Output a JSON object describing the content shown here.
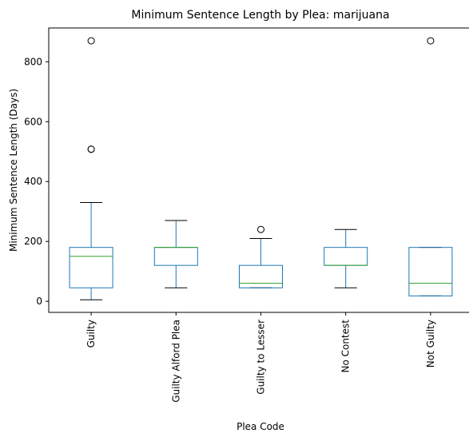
{
  "chart_data": {
    "type": "box",
    "title": "Minimum Sentence Length by Plea: marijuana",
    "xlabel": "Plea Code",
    "ylabel": "Minimum Sentence Length (Days)",
    "ylim": [
      -37,
      913
    ],
    "yticks": [
      0,
      200,
      400,
      600,
      800
    ],
    "grid": false,
    "legend": "none",
    "box_color": "#1f77b4",
    "median_color": "#2ca02c",
    "whisker_cap_color": "#000000",
    "categories": [
      "Guilty",
      "Guilty Alford Plea",
      "Guilty to Lesser",
      "No Contest",
      "Not Guilty"
    ],
    "boxes": [
      {
        "whisker_low": 5,
        "q1": 45,
        "median": 150,
        "q3": 180,
        "whisker_high": 330,
        "outliers": [
          508,
          508,
          870
        ]
      },
      {
        "whisker_low": 45,
        "q1": 120,
        "median": 180,
        "q3": 180,
        "whisker_high": 270,
        "outliers": []
      },
      {
        "whisker_low": 45,
        "q1": 45,
        "median": 60,
        "q3": 120,
        "whisker_high": 210,
        "outliers": [
          240
        ]
      },
      {
        "whisker_low": 45,
        "q1": 120,
        "median": 120,
        "q3": 180,
        "whisker_high": 240,
        "outliers": []
      },
      {
        "whisker_low": 18,
        "q1": 18,
        "median": 60,
        "q3": 180,
        "whisker_high": 180,
        "outliers": [
          870
        ]
      }
    ]
  }
}
